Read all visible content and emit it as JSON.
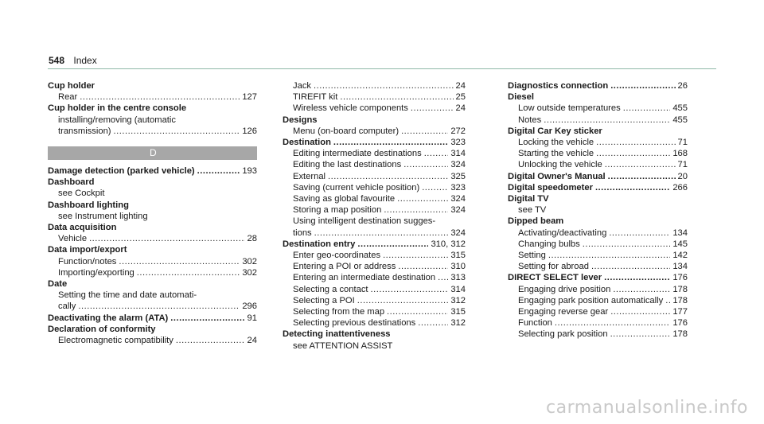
{
  "header": {
    "page_number": "548",
    "section": "Index"
  },
  "watermark": "carmanualsonline.info",
  "col1": {
    "cup_holder": {
      "heading": "Cup holder",
      "rear": {
        "text": "Rear",
        "page": "127"
      }
    },
    "cup_holder_console": {
      "heading": "Cup holder in the centre console",
      "line1": "installing/removing (automatic",
      "line2": {
        "text": "transmission)",
        "page": "126"
      }
    },
    "letter": "D",
    "damage": {
      "text": "Damage detection (parked vehicle)",
      "page": "193"
    },
    "dashboard": {
      "heading": "Dashboard",
      "see": "see Cockpit"
    },
    "dashboard_lighting": {
      "heading": "Dashboard lighting",
      "see": "see Instrument lighting"
    },
    "data_acquisition": {
      "heading": "Data acquisition",
      "vehicle": {
        "text": "Vehicle",
        "page": "28"
      }
    },
    "data_import": {
      "heading": "Data import/export",
      "function": {
        "text": "Function/notes",
        "page": "302"
      },
      "importing": {
        "text": "Importing/exporting",
        "page": "302"
      }
    },
    "date": {
      "heading": "Date",
      "line1": "Setting the time and date automati-",
      "line2": {
        "text": "cally",
        "page": "296"
      }
    },
    "deactivating": {
      "text": "Deactivating the alarm (ATA)",
      "page": "91"
    },
    "declaration": {
      "heading": "Declaration of conformity",
      "emc": {
        "text": "Electromagnetic compatibility",
        "page": "24"
      }
    }
  },
  "col2": {
    "jack": {
      "text": "Jack",
      "page": "24"
    },
    "tirefit": {
      "text": "TIREFIT kit",
      "page": "25"
    },
    "wireless": {
      "text": "Wireless vehicle components",
      "page": "24"
    },
    "designs": {
      "heading": "Designs",
      "menu": {
        "text": "Menu (on-board computer)",
        "page": "272"
      }
    },
    "destination": {
      "heading": "Destination",
      "page": "323",
      "items": [
        {
          "text": "Editing intermediate destinations",
          "page": "314"
        },
        {
          "text": "Editing the last destinations",
          "page": "324"
        },
        {
          "text": "External",
          "page": "325"
        },
        {
          "text": "Saving (current vehicle position)",
          "page": "323"
        },
        {
          "text": "Saving as global favourite",
          "page": "324"
        },
        {
          "text": "Storing a map position",
          "page": "324"
        }
      ],
      "intelligent_line1": "Using intelligent destination sugges-",
      "intelligent_line2": {
        "text": "tions",
        "page": "324"
      }
    },
    "destination_entry": {
      "heading": "Destination entry",
      "page": "310, 312",
      "items": [
        {
          "text": "Enter geo-coordinates",
          "page": "315"
        },
        {
          "text": "Entering a POI or address",
          "page": "310"
        },
        {
          "text": "Entering an intermediate destination",
          "page": "313"
        },
        {
          "text": "Selecting a contact",
          "page": "314"
        },
        {
          "text": "Selecting a POI",
          "page": "312"
        },
        {
          "text": "Selecting from the map",
          "page": "315"
        },
        {
          "text": "Selecting previous destinations",
          "page": "312"
        }
      ]
    },
    "detecting": {
      "heading": "Detecting inattentiveness",
      "see": "see ATTENTION ASSIST"
    }
  },
  "col3": {
    "diagnostics": {
      "text": "Diagnostics connection",
      "page": "26"
    },
    "diesel": {
      "heading": "Diesel",
      "items": [
        {
          "text": "Low outside temperatures",
          "page": "455"
        },
        {
          "text": "Notes",
          "page": "455"
        }
      ]
    },
    "digital_key": {
      "heading": "Digital Car Key sticker",
      "items": [
        {
          "text": "Locking the vehicle",
          "page": "71"
        },
        {
          "text": "Starting the vehicle",
          "page": "168"
        },
        {
          "text": "Unlocking the vehicle",
          "page": "71"
        }
      ]
    },
    "owners_manual": {
      "text": "Digital Owner's Manual",
      "page": "20"
    },
    "speedometer": {
      "text": "Digital speedometer",
      "page": "266"
    },
    "digital_tv": {
      "heading": "Digital TV",
      "see": "see TV"
    },
    "dipped_beam": {
      "heading": "Dipped beam",
      "items": [
        {
          "text": "Activating/deactivating",
          "page": "134"
        },
        {
          "text": "Changing bulbs",
          "page": "145"
        },
        {
          "text": "Setting",
          "page": "142"
        },
        {
          "text": "Setting for abroad",
          "page": "134"
        }
      ]
    },
    "direct_select": {
      "heading": "DIRECT SELECT lever",
      "page": "176",
      "items": [
        {
          "text": "Engaging drive position",
          "page": "178"
        },
        {
          "text": "Engaging park position automatically",
          "page": "178"
        },
        {
          "text": "Engaging reverse gear",
          "page": "177"
        },
        {
          "text": "Function",
          "page": "176"
        },
        {
          "text": "Selecting park position",
          "page": "178"
        }
      ]
    }
  }
}
